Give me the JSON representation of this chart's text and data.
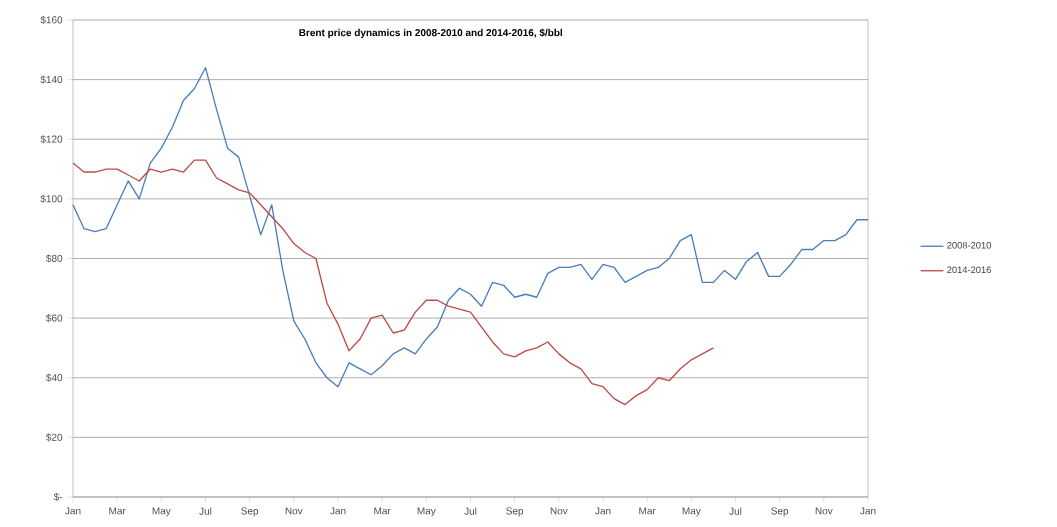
{
  "chart_data": {
    "type": "line",
    "title": "Brent price dynamics in 2008-2010 and 2014-2016, $/bbl",
    "categories": [
      "Jan",
      null,
      null,
      null,
      "Mar",
      null,
      null,
      null,
      "May",
      null,
      null,
      null,
      "Jul",
      null,
      null,
      null,
      "Sep",
      null,
      null,
      null,
      "Nov",
      null,
      null,
      null,
      "Jan",
      null,
      null,
      null,
      "Mar",
      null,
      null,
      null,
      "May",
      null,
      null,
      null,
      "Jul",
      null,
      null,
      null,
      "Sep",
      null,
      null,
      null,
      "Nov",
      null,
      null,
      null,
      "Jan",
      null,
      null,
      null,
      "Mar",
      null,
      null,
      null,
      "May",
      null,
      null,
      null,
      "Jul",
      null,
      null,
      null,
      "Sep",
      null,
      null,
      null,
      "Nov",
      null,
      null,
      null,
      "Jan"
    ],
    "ylim": [
      0,
      160
    ],
    "yticks": [
      {
        "value": 0,
        "label": "$-"
      },
      {
        "value": 20,
        "label": "$20"
      },
      {
        "value": 40,
        "label": "$40"
      },
      {
        "value": 60,
        "label": "$60"
      },
      {
        "value": 80,
        "label": "$80"
      },
      {
        "value": 100,
        "label": "$100"
      },
      {
        "value": 120,
        "label": "$120"
      },
      {
        "value": 140,
        "label": "$140"
      },
      {
        "value": 160,
        "label": "$160"
      }
    ],
    "grid": "y",
    "legend": "right",
    "marker": "none",
    "line_style": "solid",
    "series": [
      {
        "name": "2008-2010",
        "color": "#4a7ebb",
        "values": [
          98,
          90,
          89,
          90,
          98,
          106,
          100,
          112,
          117,
          124,
          133,
          137,
          144,
          130,
          117,
          114,
          101,
          88,
          98,
          76,
          59,
          53,
          45,
          40,
          37,
          45,
          43,
          41,
          44,
          48,
          50,
          48,
          53,
          57,
          66,
          70,
          68,
          64,
          72,
          71,
          67,
          68,
          67,
          75,
          77,
          77,
          78,
          73,
          78,
          77,
          72,
          74,
          76,
          77,
          80,
          86,
          88,
          72,
          72,
          76,
          73,
          79,
          82,
          74,
          74,
          78,
          83,
          83,
          86,
          86,
          88,
          93,
          93
        ]
      },
      {
        "name": "2014-2016",
        "color": "#be4b48",
        "values": [
          112,
          109,
          109,
          110,
          110,
          108,
          106,
          110,
          109,
          110,
          109,
          113,
          113,
          107,
          105,
          103,
          102,
          98,
          94,
          90,
          85,
          82,
          80,
          65,
          58,
          49,
          53,
          60,
          61,
          55,
          56,
          62,
          66,
          66,
          64,
          63,
          62,
          57,
          52,
          48,
          47,
          49,
          50,
          52,
          48,
          45,
          43,
          38,
          37,
          33,
          31,
          34,
          36,
          40,
          39,
          43,
          46,
          48,
          50,
          null,
          null,
          null,
          null,
          null,
          null,
          null,
          null,
          null,
          null,
          null,
          null,
          null,
          null
        ]
      }
    ]
  }
}
